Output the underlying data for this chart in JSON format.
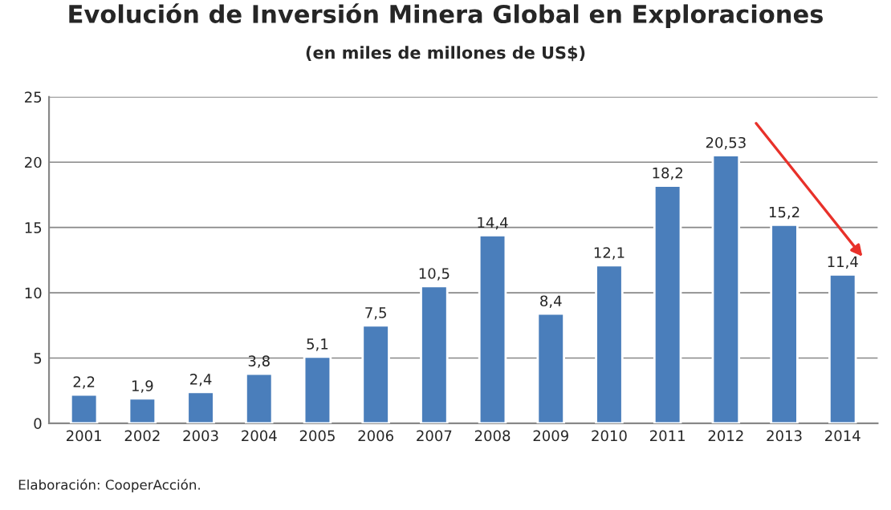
{
  "chart_data": {
    "type": "bar",
    "title": "Evolución de Inversión Minera Global en Exploraciones",
    "subtitle": "(en miles de millones de US$)",
    "categories": [
      "2001",
      "2002",
      "2003",
      "2004",
      "2005",
      "2006",
      "2007",
      "2008",
      "2009",
      "2010",
      "2011",
      "2012",
      "2013",
      "2014"
    ],
    "values": [
      2.2,
      1.9,
      2.4,
      3.8,
      5.1,
      7.5,
      10.5,
      14.4,
      8.4,
      12.1,
      18.2,
      20.53,
      15.2,
      11.4
    ],
    "value_labels": [
      "2,2",
      "1,9",
      "2,4",
      "3,8",
      "5,1",
      "7,5",
      "10,5",
      "14,4",
      "8,4",
      "12,1",
      "18,2",
      "20,53",
      "15,2",
      "11,4"
    ],
    "color": "#4a7ebb",
    "ylim": [
      0,
      25
    ],
    "yticks": [
      0,
      5,
      10,
      15,
      20,
      25
    ],
    "grid": "y",
    "annotations": [
      "Elaboración: CooperAcción."
    ]
  }
}
